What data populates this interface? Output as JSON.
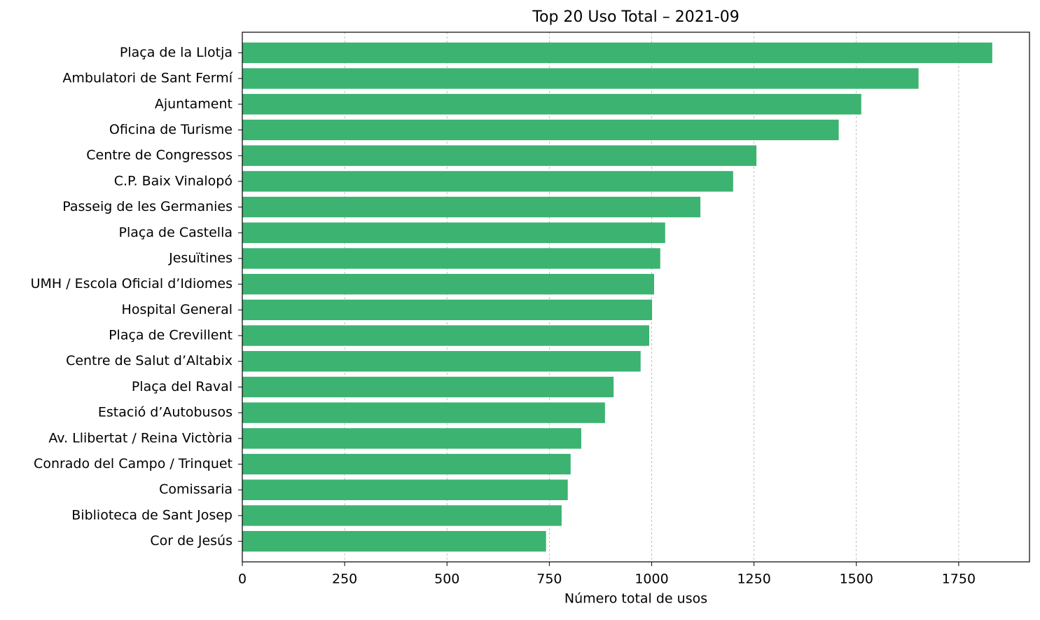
{
  "chart_data": {
    "type": "barh",
    "title": "Top 20 Uso Total – 2021-09",
    "xlabel": "Número total de usos",
    "categories": [
      "Plaça de la Llotja",
      "Ambulatori de Sant Fermí",
      "Ajuntament",
      "Oficina de Turisme",
      "Centre de Congressos",
      "C.P. Baix Vinalopó",
      "Passeig de les Germanies",
      "Plaça de Castella",
      "Jesuïtines",
      "UMH / Escola Oficial d’Idiomes",
      "Hospital General",
      "Plaça de Crevillent",
      "Centre de Salut d’Altabix",
      "Plaça del Raval",
      "Estació d’Autobusos",
      "Av. Llibertat / Reina Victòria",
      "Conrado del Campo / Trinquet",
      "Comissaria",
      "Biblioteca de Sant Josep",
      "Cor de Jesús"
    ],
    "values": [
      1832,
      1652,
      1512,
      1457,
      1256,
      1199,
      1119,
      1033,
      1021,
      1006,
      1001,
      994,
      973,
      907,
      886,
      828,
      802,
      795,
      780,
      742
    ],
    "color": "#3cb371",
    "xlim": [
      0,
      1923
    ],
    "xticks": [
      0,
      250,
      500,
      750,
      1000,
      1250,
      1500,
      1750
    ],
    "grid": true
  }
}
